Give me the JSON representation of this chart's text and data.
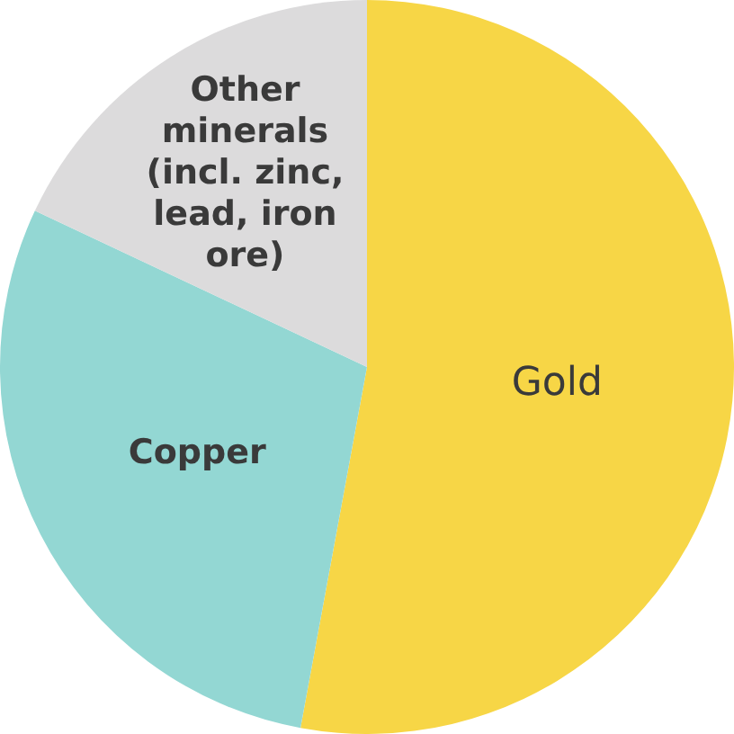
{
  "chart_data": {
    "type": "pie",
    "categories": [
      "Gold",
      "Copper",
      "Other minerals (incl. zinc, lead, iron ore)"
    ],
    "values": [
      52.9,
      29.1,
      18
    ],
    "colors": [
      "#f7d646",
      "#93d7d3",
      "#dcdbdc"
    ],
    "data_labels": false,
    "legend": false
  }
}
